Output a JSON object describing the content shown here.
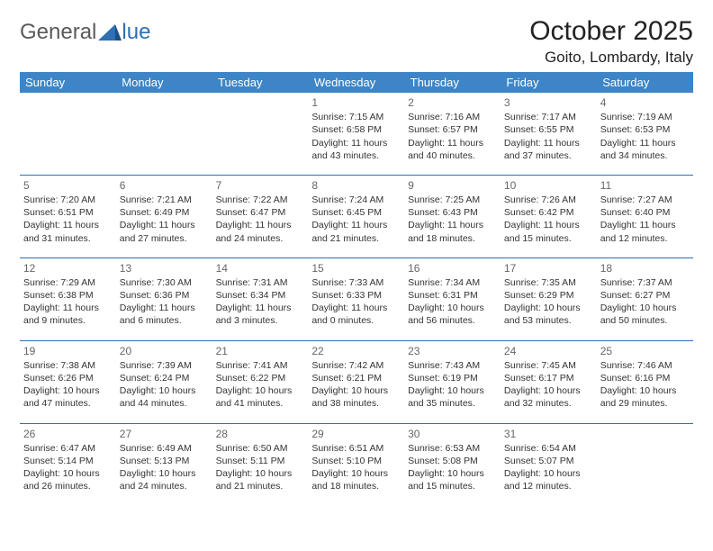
{
  "logo": {
    "part1": "General",
    "part2": "lue"
  },
  "title": "October 2025",
  "location": "Goito, Lombardy, Italy",
  "colors": {
    "header_bg": "#3d85c6",
    "rule": "#2f6fb3",
    "logo_gray": "#5a5a5a",
    "logo_blue": "#2f6fb3"
  },
  "weekdays": [
    "Sunday",
    "Monday",
    "Tuesday",
    "Wednesday",
    "Thursday",
    "Friday",
    "Saturday"
  ],
  "weeks": [
    [
      null,
      null,
      null,
      {
        "d": "1",
        "rise": "7:15 AM",
        "set": "6:58 PM",
        "dl": "11 hours and 43 minutes."
      },
      {
        "d": "2",
        "rise": "7:16 AM",
        "set": "6:57 PM",
        "dl": "11 hours and 40 minutes."
      },
      {
        "d": "3",
        "rise": "7:17 AM",
        "set": "6:55 PM",
        "dl": "11 hours and 37 minutes."
      },
      {
        "d": "4",
        "rise": "7:19 AM",
        "set": "6:53 PM",
        "dl": "11 hours and 34 minutes."
      }
    ],
    [
      {
        "d": "5",
        "rise": "7:20 AM",
        "set": "6:51 PM",
        "dl": "11 hours and 31 minutes."
      },
      {
        "d": "6",
        "rise": "7:21 AM",
        "set": "6:49 PM",
        "dl": "11 hours and 27 minutes."
      },
      {
        "d": "7",
        "rise": "7:22 AM",
        "set": "6:47 PM",
        "dl": "11 hours and 24 minutes."
      },
      {
        "d": "8",
        "rise": "7:24 AM",
        "set": "6:45 PM",
        "dl": "11 hours and 21 minutes."
      },
      {
        "d": "9",
        "rise": "7:25 AM",
        "set": "6:43 PM",
        "dl": "11 hours and 18 minutes."
      },
      {
        "d": "10",
        "rise": "7:26 AM",
        "set": "6:42 PM",
        "dl": "11 hours and 15 minutes."
      },
      {
        "d": "11",
        "rise": "7:27 AM",
        "set": "6:40 PM",
        "dl": "11 hours and 12 minutes."
      }
    ],
    [
      {
        "d": "12",
        "rise": "7:29 AM",
        "set": "6:38 PM",
        "dl": "11 hours and 9 minutes."
      },
      {
        "d": "13",
        "rise": "7:30 AM",
        "set": "6:36 PM",
        "dl": "11 hours and 6 minutes."
      },
      {
        "d": "14",
        "rise": "7:31 AM",
        "set": "6:34 PM",
        "dl": "11 hours and 3 minutes."
      },
      {
        "d": "15",
        "rise": "7:33 AM",
        "set": "6:33 PM",
        "dl": "11 hours and 0 minutes."
      },
      {
        "d": "16",
        "rise": "7:34 AM",
        "set": "6:31 PM",
        "dl": "10 hours and 56 minutes."
      },
      {
        "d": "17",
        "rise": "7:35 AM",
        "set": "6:29 PM",
        "dl": "10 hours and 53 minutes."
      },
      {
        "d": "18",
        "rise": "7:37 AM",
        "set": "6:27 PM",
        "dl": "10 hours and 50 minutes."
      }
    ],
    [
      {
        "d": "19",
        "rise": "7:38 AM",
        "set": "6:26 PM",
        "dl": "10 hours and 47 minutes."
      },
      {
        "d": "20",
        "rise": "7:39 AM",
        "set": "6:24 PM",
        "dl": "10 hours and 44 minutes."
      },
      {
        "d": "21",
        "rise": "7:41 AM",
        "set": "6:22 PM",
        "dl": "10 hours and 41 minutes."
      },
      {
        "d": "22",
        "rise": "7:42 AM",
        "set": "6:21 PM",
        "dl": "10 hours and 38 minutes."
      },
      {
        "d": "23",
        "rise": "7:43 AM",
        "set": "6:19 PM",
        "dl": "10 hours and 35 minutes."
      },
      {
        "d": "24",
        "rise": "7:45 AM",
        "set": "6:17 PM",
        "dl": "10 hours and 32 minutes."
      },
      {
        "d": "25",
        "rise": "7:46 AM",
        "set": "6:16 PM",
        "dl": "10 hours and 29 minutes."
      }
    ],
    [
      {
        "d": "26",
        "rise": "6:47 AM",
        "set": "5:14 PM",
        "dl": "10 hours and 26 minutes."
      },
      {
        "d": "27",
        "rise": "6:49 AM",
        "set": "5:13 PM",
        "dl": "10 hours and 24 minutes."
      },
      {
        "d": "28",
        "rise": "6:50 AM",
        "set": "5:11 PM",
        "dl": "10 hours and 21 minutes."
      },
      {
        "d": "29",
        "rise": "6:51 AM",
        "set": "5:10 PM",
        "dl": "10 hours and 18 minutes."
      },
      {
        "d": "30",
        "rise": "6:53 AM",
        "set": "5:08 PM",
        "dl": "10 hours and 15 minutes."
      },
      {
        "d": "31",
        "rise": "6:54 AM",
        "set": "5:07 PM",
        "dl": "10 hours and 12 minutes."
      },
      null
    ]
  ],
  "labels": {
    "sunrise": "Sunrise: ",
    "sunset": "Sunset: ",
    "daylight": "Daylight: "
  }
}
